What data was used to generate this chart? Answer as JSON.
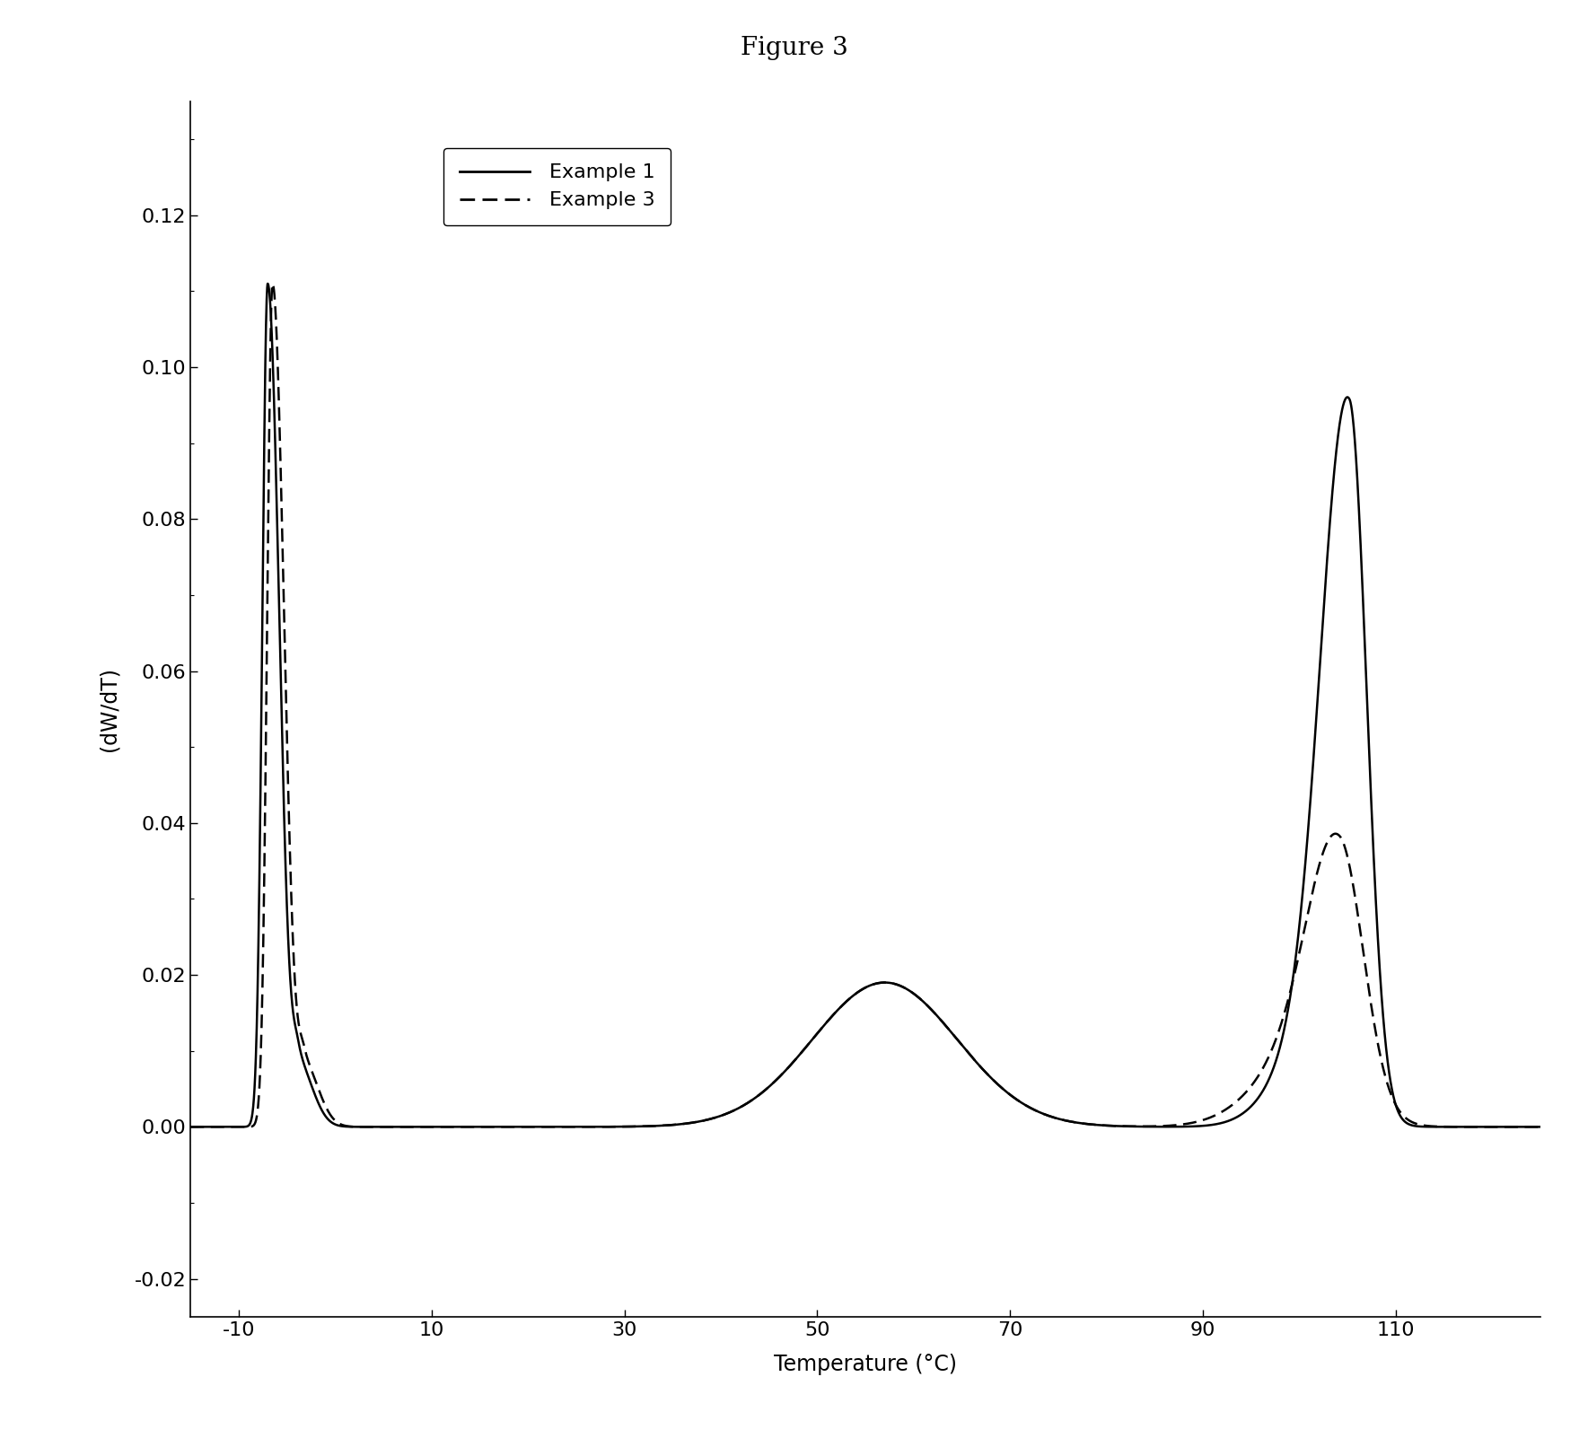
{
  "title": "Figure 3",
  "xlabel": "Temperature (°C)",
  "ylabel": "(dW/dT)",
  "xlim": [
    -15,
    125
  ],
  "ylim": [
    -0.025,
    0.135
  ],
  "xticks": [
    -10,
    10,
    30,
    50,
    70,
    90,
    110
  ],
  "yticks": [
    -0.02,
    0.0,
    0.02,
    0.04,
    0.06,
    0.08,
    0.1,
    0.12
  ],
  "legend_labels": [
    "Example 1",
    "Example 3"
  ],
  "line_color": "#000000",
  "background_color": "#ffffff",
  "title_fontsize": 20,
  "label_fontsize": 17,
  "tick_fontsize": 16,
  "legend_fontsize": 16
}
